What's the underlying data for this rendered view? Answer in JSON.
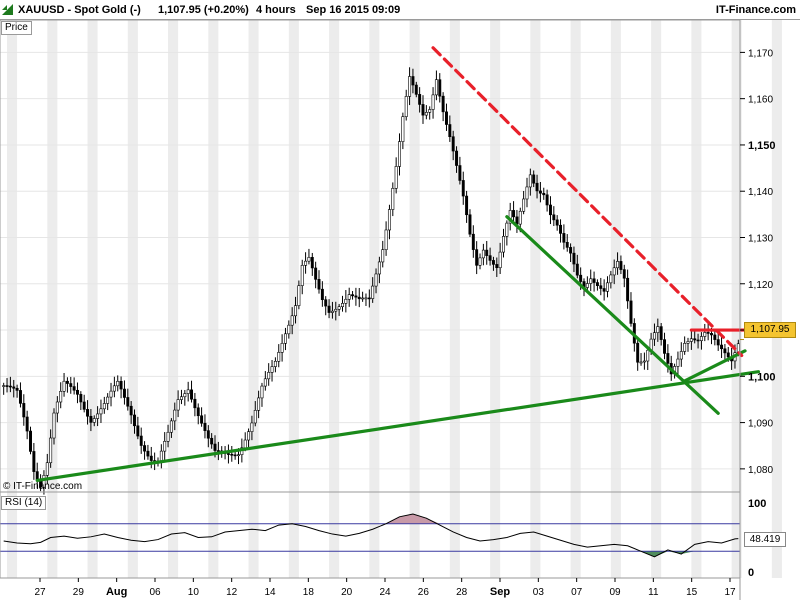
{
  "header": {
    "symbol": "XAUUSD - Spot Gold (-)",
    "price_change": "1,107.95 (+0.20%)",
    "interval": "4 hours",
    "timestamp": "Sep 16 2015 09:09",
    "brand": "IT-Finance.com"
  },
  "price_panel": {
    "label": "Price",
    "copyright": "© IT-Finance.com",
    "last_price_badge": "1,107.95"
  },
  "rsi_panel": {
    "label": "RSI (14)",
    "last_value_badge": "48.419"
  },
  "colors": {
    "up_candle": "#ffffff",
    "down_candle": "#000000",
    "support_line": "#1a8a1a",
    "resistance_dashed": "#e8202a",
    "resistance_solid": "#e8202a",
    "price_badge": "#f4c430",
    "rsi_overbought_fill": "#c89aa8",
    "rsi_oversold_fill": "#4f8c5c",
    "rsi_band_line": "#3a3aa0",
    "weekend_shade": "#ececec"
  },
  "chart_data": [
    {
      "type": "candlestick",
      "title": "XAUUSD - Spot Gold (-)",
      "interval": "4 hours",
      "ylim": [
        1075,
        1177
      ],
      "y_ticks": [
        1080,
        1090,
        1100,
        1110,
        1120,
        1130,
        1140,
        1150,
        1160,
        1170
      ],
      "y_tick_labels": [
        "1,080",
        "1,090",
        "1,100",
        "1,110",
        "1,120",
        "1,130",
        "1,140",
        "1,150",
        "1,160",
        "1,170"
      ],
      "y_bold_ticks": [
        "1,100",
        "1,150"
      ],
      "x_tick_labels": [
        "27",
        "29",
        "Aug",
        "06",
        "10",
        "12",
        "14",
        "18",
        "20",
        "24",
        "26",
        "28",
        "Sep",
        "03",
        "07",
        "09",
        "11",
        "15",
        "17"
      ],
      "x_bold_ticks": [
        "Aug",
        "Sep"
      ],
      "last_price": 1107.95,
      "close_path": [
        [
          0,
          1098
        ],
        [
          4,
          1096
        ],
        [
          7,
          1088
        ],
        [
          9,
          1080
        ],
        [
          11,
          1077
        ],
        [
          13,
          1082
        ],
        [
          15,
          1092
        ],
        [
          18,
          1098
        ],
        [
          22,
          1096
        ],
        [
          26,
          1091
        ],
        [
          30,
          1094
        ],
        [
          34,
          1098
        ],
        [
          38,
          1092
        ],
        [
          41,
          1086
        ],
        [
          44,
          1082
        ],
        [
          46,
          1081
        ],
        [
          49,
          1087
        ],
        [
          52,
          1095
        ],
        [
          55,
          1098
        ],
        [
          58,
          1092
        ],
        [
          61,
          1086
        ],
        [
          63,
          1083
        ],
        [
          66,
          1083
        ],
        [
          70,
          1084
        ],
        [
          74,
          1090
        ],
        [
          77,
          1097
        ],
        [
          81,
          1103
        ],
        [
          84,
          1110
        ],
        [
          87,
          1116
        ],
        [
          89,
          1124
        ],
        [
          91,
          1125
        ],
        [
          93,
          1120
        ],
        [
          95,
          1116
        ],
        [
          97,
          1114
        ],
        [
          100,
          1116
        ],
        [
          103,
          1118
        ],
        [
          106,
          1116
        ],
        [
          109,
          1116
        ],
        [
          111,
          1122
        ],
        [
          113,
          1128
        ],
        [
          115,
          1137
        ],
        [
          117,
          1146
        ],
        [
          119,
          1156
        ],
        [
          121,
          1164
        ],
        [
          123,
          1160
        ],
        [
          125,
          1156
        ],
        [
          127,
          1158
        ],
        [
          129,
          1165
        ],
        [
          131,
          1158
        ],
        [
          133,
          1152
        ],
        [
          135,
          1145
        ],
        [
          137,
          1138
        ],
        [
          139,
          1130
        ],
        [
          141,
          1124
        ],
        [
          143,
          1128
        ],
        [
          145,
          1126
        ],
        [
          147,
          1124
        ],
        [
          149,
          1130
        ],
        [
          151,
          1135
        ],
        [
          153,
          1132
        ],
        [
          155,
          1138
        ],
        [
          157,
          1144
        ],
        [
          159,
          1141
        ],
        [
          161,
          1140
        ],
        [
          163,
          1135
        ],
        [
          165,
          1132
        ],
        [
          167,
          1128
        ],
        [
          169,
          1126
        ],
        [
          171,
          1122
        ],
        [
          173,
          1120
        ],
        [
          175,
          1122
        ],
        [
          177,
          1120
        ],
        [
          179,
          1118
        ],
        [
          181,
          1121
        ],
        [
          183,
          1124
        ],
        [
          185,
          1121
        ],
        [
          187,
          1112
        ],
        [
          189,
          1104
        ],
        [
          191,
          1104
        ],
        [
          193,
          1108
        ],
        [
          195,
          1110
        ],
        [
          197,
          1104
        ],
        [
          199,
          1100
        ],
        [
          201,
          1104
        ],
        [
          203,
          1108
        ],
        [
          205,
          1109
        ],
        [
          207,
          1108
        ],
        [
          209,
          1109
        ],
        [
          211,
          1108
        ],
        [
          213,
          1106
        ],
        [
          215,
          1105
        ],
        [
          217,
          1104
        ],
        [
          219,
          1108
        ]
      ],
      "drawn_lines": [
        {
          "name": "Long-term support",
          "color": "support_line",
          "style": "solid",
          "from": [
            10,
            1077.5
          ],
          "to": [
            225,
            1101
          ]
        },
        {
          "name": "Short-term support",
          "color": "support_line",
          "style": "solid",
          "from": [
            203,
            1099
          ],
          "to": [
            221,
            1105.5
          ]
        },
        {
          "name": "Channel line",
          "color": "support_line",
          "style": "solid",
          "from": [
            150,
            1134.5
          ],
          "to": [
            213,
            1092
          ]
        },
        {
          "name": "Downtrend resistance",
          "color": "resistance_dashed",
          "style": "dashed",
          "from": [
            128,
            1171
          ],
          "to": [
            220,
            1104.5
          ]
        },
        {
          "name": "Horizontal resistance",
          "color": "resistance_solid",
          "style": "solid",
          "from": [
            205,
            1110
          ],
          "to": [
            226,
            1110
          ]
        }
      ]
    },
    {
      "type": "line",
      "title": "RSI (14)",
      "ylim": [
        0,
        100
      ],
      "y_tick_labels": [
        "100",
        "0"
      ],
      "bands": [
        30,
        70
      ],
      "last_value": 48.419,
      "path": [
        [
          0,
          45
        ],
        [
          4,
          42
        ],
        [
          8,
          41
        ],
        [
          11,
          43
        ],
        [
          14,
          50
        ],
        [
          18,
          52
        ],
        [
          22,
          49
        ],
        [
          26,
          51
        ],
        [
          30,
          55
        ],
        [
          34,
          50
        ],
        [
          38,
          46
        ],
        [
          42,
          44
        ],
        [
          46,
          47
        ],
        [
          50,
          55
        ],
        [
          54,
          57
        ],
        [
          58,
          50
        ],
        [
          62,
          51
        ],
        [
          66,
          58
        ],
        [
          70,
          60
        ],
        [
          74,
          62
        ],
        [
          78,
          60
        ],
        [
          82,
          68
        ],
        [
          86,
          70
        ],
        [
          90,
          66
        ],
        [
          94,
          60
        ],
        [
          98,
          55
        ],
        [
          102,
          52
        ],
        [
          106,
          56
        ],
        [
          110,
          62
        ],
        [
          114,
          70
        ],
        [
          118,
          80
        ],
        [
          122,
          84
        ],
        [
          126,
          78
        ],
        [
          130,
          68
        ],
        [
          134,
          58
        ],
        [
          138,
          50
        ],
        [
          142,
          45
        ],
        [
          146,
          47
        ],
        [
          150,
          50
        ],
        [
          154,
          56
        ],
        [
          158,
          58
        ],
        [
          162,
          52
        ],
        [
          166,
          46
        ],
        [
          170,
          40
        ],
        [
          174,
          36
        ],
        [
          178,
          38
        ],
        [
          182,
          40
        ],
        [
          186,
          38
        ],
        [
          190,
          30
        ],
        [
          194,
          22
        ],
        [
          198,
          32
        ],
        [
          202,
          26
        ],
        [
          206,
          40
        ],
        [
          210,
          44
        ],
        [
          214,
          42
        ],
        [
          218,
          48
        ],
        [
          219,
          48.4
        ]
      ]
    }
  ]
}
